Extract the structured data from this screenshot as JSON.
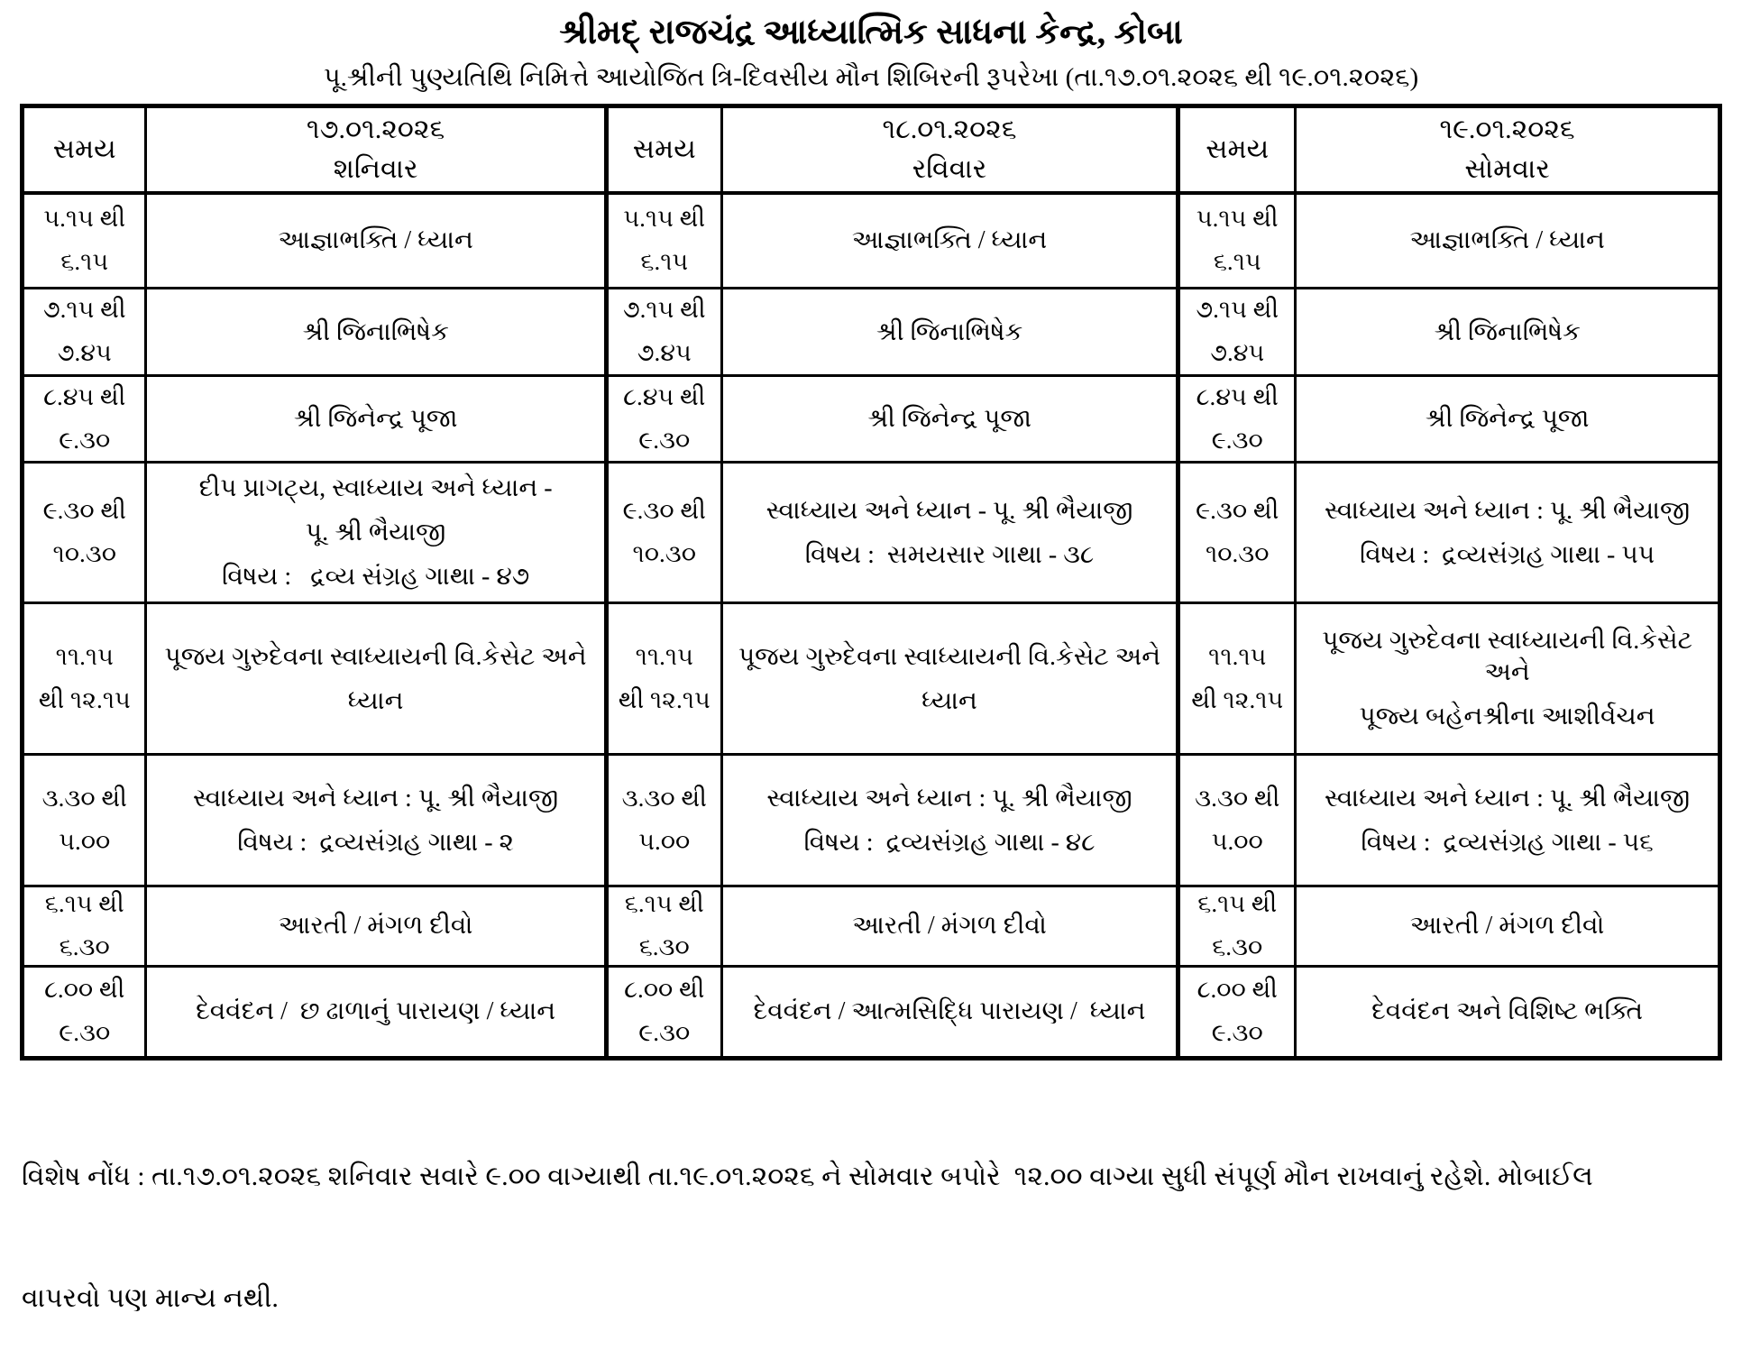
{
  "page": {
    "title": "શ્રીમદ્ રાજચંદ્ર આધ્યાત્મિક સાધના કેન્દ્ર, કોબા",
    "subtitle": "પૂ.શ્રીની પુણ્યતિથિ નિમિત્તે આયોજિત ત્રિ-દિવસીય મૌન શિબિરની રૂપરેખા (તા.૧૭.૦૧.૨૦૨૬ થી ૧૯.૦૧.૨૦૨૬)",
    "note_line1": "વિશેષ નોંધ : તા.૧૭.૦૧.૨૦૨૬ શનિવાર સવારે ૯.૦૦ વાગ્યાથી તા.૧૯.૦૧.૨૦૨૬ ને સોમવાર બપોરે  ૧૨.૦૦ વાગ્યા સુધી સંપૂર્ણ મૌન રાખવાનું રહેશે. મોબાઈલ",
    "note_line2": "વાપરવો પણ માન્ય નથી."
  },
  "colors": {
    "text": "#000000",
    "border": "#000000",
    "background": "#ffffff"
  },
  "table": {
    "header": {
      "time_label": "સમય",
      "days": [
        {
          "date": "૧૭.૦૧.૨૦૨૬",
          "day": "શનિવાર"
        },
        {
          "date": "૧૮.૦૧.૨૦૨૬",
          "day": "રવિવાર"
        },
        {
          "date": "૧૯.૦૧.૨૦૨૬",
          "day": "સોમવાર"
        }
      ]
    },
    "rows": [
      {
        "time": [
          "૫.૧૫ થી",
          "૬.૧૫"
        ],
        "saturday": [
          "આજ્ઞાભક્તિ / ધ્યાન"
        ],
        "sunday": [
          "આજ્ઞાભક્તિ / ધ્યાન"
        ],
        "monday": [
          "આજ્ઞાભક્તિ / ધ્યાન"
        ]
      },
      {
        "time": [
          "૭.૧૫ થી",
          "૭.૪૫"
        ],
        "saturday": [
          "શ્રી જિનાભિષેક"
        ],
        "sunday": [
          "શ્રી જિનાભિષેક"
        ],
        "monday": [
          "શ્રી જિનાભિષેક"
        ]
      },
      {
        "time": [
          "૮.૪૫ થી",
          "૯.૩૦"
        ],
        "saturday": [
          "શ્રી જિનેન્દ્ર પૂજા"
        ],
        "sunday": [
          "શ્રી જિનેન્દ્ર પૂજા"
        ],
        "monday": [
          "શ્રી જિનેન્દ્ર પૂજા"
        ]
      },
      {
        "time": [
          "૯.૩૦ થી",
          "૧૦.૩૦"
        ],
        "saturday": [
          "દીપ પ્રાગટ્ય, સ્વાધ્યાય અને ધ્યાન -",
          "પૂ. શ્રી ભૈયાજી",
          "વિષય :   દ્રવ્ય સંગ્રહ ગાથા - ૪૭"
        ],
        "sunday": [
          "સ્વાધ્યાય અને ધ્યાન - પૂ. શ્રી ભૈયાજી",
          "વિષય :  સમયસાર ગાથા - ૩૮"
        ],
        "monday": [
          "સ્વાધ્યાય અને ધ્યાન : પૂ. શ્રી ભૈયાજી",
          "વિષય :  દ્રવ્યસંગ્રહ ગાથા - ૫૫"
        ]
      },
      {
        "time": [
          "૧૧.૧૫",
          "થી ૧૨.૧૫"
        ],
        "saturday": [
          "પૂજય ગુરુદેવના સ્વાધ્યાયની વિ.કેસેટ અને",
          "ધ્યાન"
        ],
        "sunday": [
          "પૂજય ગુરુદેવના સ્વાધ્યાયની વિ.કેસેટ અને",
          "ધ્યાન"
        ],
        "monday": [
          "પૂજય ગુરુદેવના સ્વાધ્યાયની વિ.કેસેટ અને",
          "પૂજ્ય બહેનશ્રીના આશીર્વચન"
        ]
      },
      {
        "time": [
          "૩.૩૦ થી",
          "૫.૦૦"
        ],
        "saturday": [
          "સ્વાધ્યાય અને ધ્યાન : પૂ. શ્રી ભૈયાજી",
          "વિષય :  દ્રવ્યસંગ્રહ ગાથા - ૨"
        ],
        "sunday": [
          "સ્વાધ્યાય અને ધ્યાન : પૂ. શ્રી ભૈયાજી",
          "વિષય :  દ્રવ્યસંગ્રહ ગાથા - ૪૮"
        ],
        "monday": [
          "સ્વાધ્યાય અને ધ્યાન : પૂ. શ્રી ભૈયાજી",
          "વિષય :  દ્રવ્યસંગ્રહ ગાથા - ૫૬"
        ]
      },
      {
        "time": [
          "૬.૧૫ થી",
          "૬.૩૦"
        ],
        "saturday": [
          "આરતી / મંગળ દીવો"
        ],
        "sunday": [
          "આરતી / મંગળ દીવો"
        ],
        "monday": [
          "આરતી / મંગળ દીવો"
        ]
      },
      {
        "time": [
          "૮.૦૦ થી",
          "૯.૩૦"
        ],
        "saturday": [
          "દેવવંદન /  છ ઢાળાનું પારાયણ / ધ્યાન"
        ],
        "sunday": [
          "દેવવંદન / આત્મસિદ્ધિ પારાયણ /  ધ્યાન"
        ],
        "monday": [
          "દેવવંદન અને વિશિષ્ટ ભક્તિ"
        ]
      }
    ]
  }
}
